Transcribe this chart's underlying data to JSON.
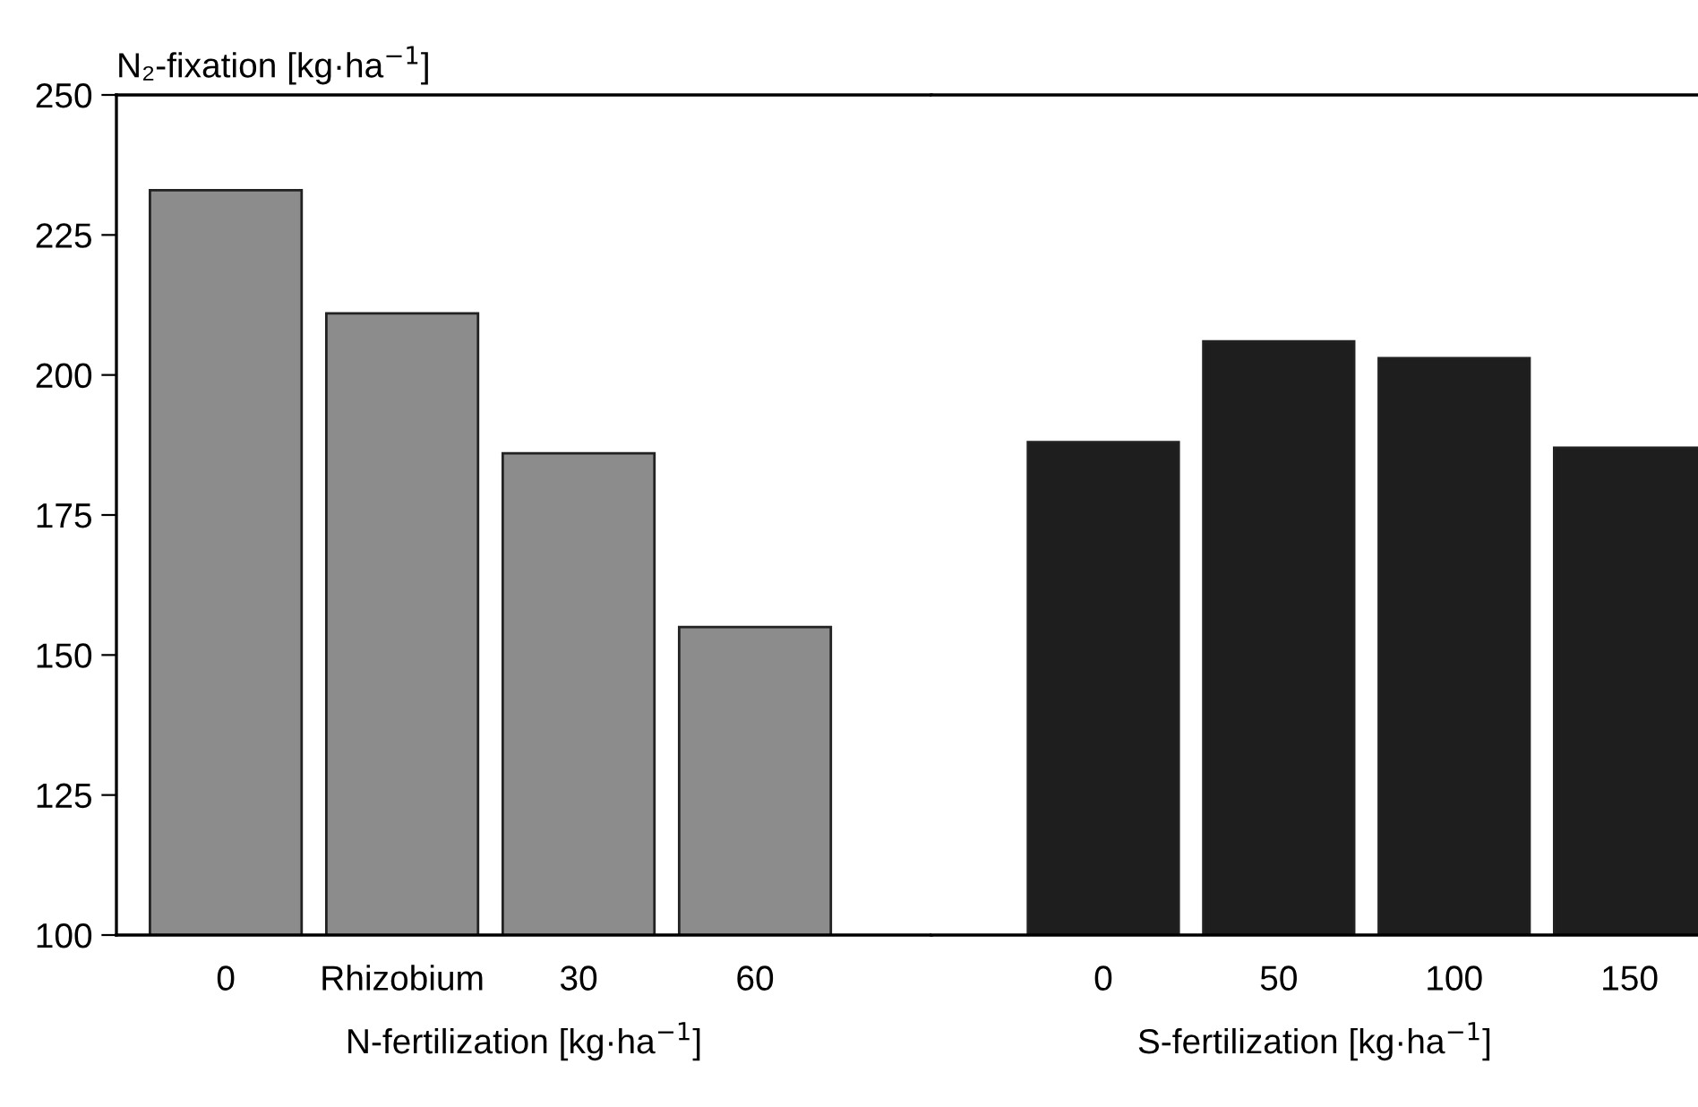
{
  "chart_data": [
    {
      "type": "bar",
      "ylabel": "N₂-fixation [kg·ha$^{−1}$]",
      "xlabel": "N-fertilization [kg·ha$^{−1}$]",
      "categories": [
        "0",
        "Rhizobium",
        "30",
        "60"
      ],
      "series": [
        {
          "color": "#8c8c8c",
          "values": [
            233,
            211,
            186,
            155
          ]
        }
      ],
      "ylim": [
        100,
        250
      ],
      "yticks": [
        100,
        125,
        150,
        175,
        200,
        225,
        250
      ]
    },
    {
      "type": "bar",
      "xlabel": "S-fertilization [kg·ha$^{−1}$]",
      "categories": [
        "0",
        "50",
        "100",
        "150"
      ],
      "series": [
        {
          "color": "#1e1e1e",
          "values": [
            188,
            206,
            203,
            187
          ]
        }
      ],
      "ylim": [
        100,
        250
      ],
      "tick_labels": "x"
    }
  ]
}
